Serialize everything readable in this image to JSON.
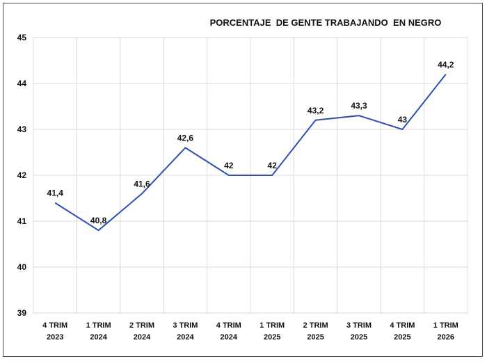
{
  "chart_data": {
    "type": "line",
    "title": "PORCENTAJE  DE GENTE TRABAJANDO  EN NEGRO",
    "categories": [
      [
        "4 TRIM",
        "2023"
      ],
      [
        "1 TRIM",
        "2024"
      ],
      [
        "2 TRIM",
        "2024"
      ],
      [
        "3 TRIM",
        "2024"
      ],
      [
        "4 TRIM",
        "2024"
      ],
      [
        "1 TRIM",
        "2025"
      ],
      [
        "2 TRIM",
        "2025"
      ],
      [
        "3 TRIM",
        "2025"
      ],
      [
        "4 TRIM",
        "2025"
      ],
      [
        "1 TRIM",
        "2026"
      ]
    ],
    "values": [
      41.4,
      40.8,
      41.6,
      42.6,
      42,
      42,
      43.2,
      43.3,
      43,
      44.2
    ],
    "data_labels": [
      "41,4",
      "40,8",
      "41,6",
      "42,6",
      "42",
      "42",
      "43,2",
      "43,3",
      "43",
      "44,2"
    ],
    "ylim": [
      39,
      45
    ],
    "yticks": [
      "39",
      "40",
      "41",
      "42",
      "43",
      "44",
      "45"
    ],
    "xlabel": "",
    "ylabel": "",
    "grid": true,
    "legend": "none",
    "line_color": "#2f4fb0"
  }
}
